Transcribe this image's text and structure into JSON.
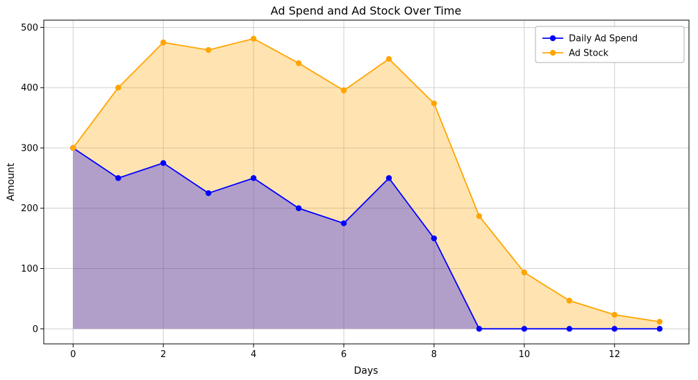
{
  "chart_data": {
    "type": "line",
    "title": "Ad Spend and Ad Stock Over Time",
    "xlabel": "Days",
    "ylabel": "Amount",
    "x": [
      0,
      1,
      2,
      3,
      4,
      5,
      6,
      7,
      8,
      9,
      10,
      11,
      12,
      13
    ],
    "series": [
      {
        "name": "Daily Ad Spend",
        "color": "#0000ff",
        "fill": true,
        "values": [
          300,
          250,
          275,
          225,
          250,
          200,
          175,
          250,
          150,
          0,
          0,
          0,
          0,
          0
        ]
      },
      {
        "name": "Ad Stock",
        "color": "#ffa500",
        "fill": true,
        "values": [
          300,
          400,
          475,
          462.5,
          481.25,
          440.63,
          395.31,
          447.66,
          373.83,
          186.91,
          93.46,
          46.73,
          23.36,
          11.68
        ]
      }
    ],
    "xticks": [
      0,
      2,
      4,
      6,
      8,
      10,
      12
    ],
    "yticks": [
      0,
      100,
      200,
      300,
      400,
      500
    ],
    "xlim": [
      -0.65,
      13.65
    ],
    "ylim": [
      -25,
      512
    ],
    "grid": true,
    "fill_opacity": 0.3,
    "legend_position": "upper right"
  }
}
